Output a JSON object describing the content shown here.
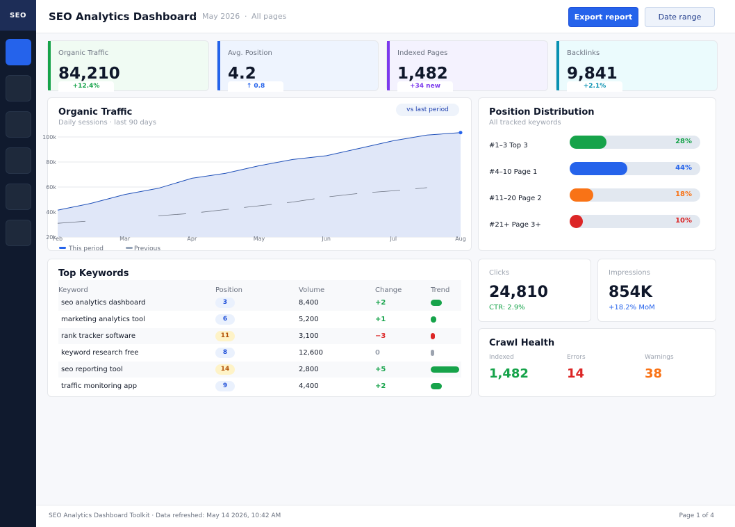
{
  "sidebar": {
    "logo": "SEO",
    "items": [
      {
        "icon": "dashboard-icon",
        "active": true
      },
      {
        "icon": "keywords-icon",
        "active": false
      },
      {
        "icon": "pages-icon",
        "active": false
      },
      {
        "icon": "backlinks-icon",
        "active": false
      },
      {
        "icon": "reports-icon",
        "active": false
      },
      {
        "icon": "settings-icon",
        "active": false
      }
    ]
  },
  "header": {
    "title": "SEO Analytics Dashboard",
    "period": "May 2026",
    "scope": "All pages",
    "export_label": "Export report",
    "date_range_label": "Date range"
  },
  "kpis": [
    {
      "label": "Organic Traffic",
      "value": "84,210",
      "delta": "+12.4%",
      "accent": "#16a34a",
      "bg": "#f0fbf3",
      "delta_color": "#16a34a"
    },
    {
      "label": "Avg. Position",
      "value": "4.2",
      "delta": "↑ 0.8",
      "accent": "#2563eb",
      "bg": "#eef4fe",
      "delta_color": "#2563eb"
    },
    {
      "label": "Indexed Pages",
      "value": "1,482",
      "delta": "+34 new",
      "accent": "#7c3aed",
      "bg": "#f4f2fe",
      "delta_color": "#7c3aed"
    },
    {
      "label": "Backlinks",
      "value": "9,841",
      "delta": "+2.1%",
      "accent": "#0891b2",
      "bg": "#ebfbfd",
      "delta_color": "#0891b2"
    }
  ],
  "traffic": {
    "title": "Organic Traffic",
    "subtitle": "Daily sessions · last 90 days",
    "pill": "vs last period",
    "legend_current": "This period",
    "legend_previous": "Previous",
    "colors": {
      "current": "#1e4fb8",
      "previous": "#6b7280",
      "fill": "#e0e7f8"
    }
  },
  "chart_data": {
    "type": "area",
    "x": [
      "Feb",
      "",
      "Mar",
      "",
      "Apr",
      "",
      "May",
      "",
      "Jun",
      "",
      "Jul",
      "",
      "Aug"
    ],
    "x_ticks": [
      "Feb",
      "Mar",
      "Apr",
      "May",
      "Jun",
      "Jul",
      "Aug"
    ],
    "y_ticks": [
      "100k",
      "80k",
      "60k",
      "40k",
      "20k"
    ],
    "ylim": [
      20000,
      100000
    ],
    "series": [
      {
        "name": "This period",
        "values": [
          41500,
          47000,
          54000,
          59000,
          67000,
          71000,
          77000,
          82000,
          85000,
          91000,
          97000,
          101500,
          103500
        ]
      },
      {
        "name": "Previous",
        "values": [
          31000,
          33000,
          null,
          37000,
          39000,
          42000,
          45000,
          48000,
          52000,
          55000,
          57000,
          59500,
          null
        ]
      }
    ],
    "grid": true,
    "legend": "bottom-left"
  },
  "distribution": {
    "title": "Position Distribution",
    "subtitle": "All tracked keywords",
    "rows": [
      {
        "label": "#1–3  Top 3",
        "pct": 28,
        "pct_label": "28%",
        "color": "#16a34a"
      },
      {
        "label": "#4–10  Page 1",
        "pct": 44,
        "pct_label": "44%",
        "color": "#2563eb"
      },
      {
        "label": "#11–20  Page 2",
        "pct": 18,
        "pct_label": "18%",
        "color": "#f97316"
      },
      {
        "label": "#21+  Page 3+",
        "pct": 10,
        "pct_label": "10%",
        "color": "#dc2626"
      }
    ]
  },
  "keywords": {
    "title": "Top Keywords",
    "columns": [
      "Keyword",
      "Position",
      "Volume",
      "Change",
      "Trend"
    ],
    "rows": [
      {
        "keyword": "seo analytics dashboard",
        "position": "3",
        "volume": "8,400",
        "change": "+2",
        "trend": 0.4,
        "tone": "good"
      },
      {
        "keyword": "marketing analytics tool",
        "position": "6",
        "volume": "5,200",
        "change": "+1",
        "trend": 0.2,
        "tone": "good"
      },
      {
        "keyword": "rank tracker software",
        "position": "11",
        "volume": "3,100",
        "change": "−3",
        "trend": 0.15,
        "tone": "bad"
      },
      {
        "keyword": "keyword research free",
        "position": "8",
        "volume": "12,600",
        "change": "0",
        "trend": 0.1,
        "tone": "neutral"
      },
      {
        "keyword": "seo reporting tool",
        "position": "14",
        "volume": "2,800",
        "change": "+5",
        "trend": 1.0,
        "tone": "good"
      },
      {
        "keyword": "traffic monitoring app",
        "position": "9",
        "volume": "4,400",
        "change": "+2",
        "trend": 0.4,
        "tone": "good"
      }
    ]
  },
  "clicks": {
    "label": "Clicks",
    "value": "24,810",
    "sub": "CTR: 2.9%",
    "color": "#16a34a"
  },
  "impressions": {
    "label": "Impressions",
    "value": "854K",
    "sub": "+18.2% MoM",
    "color": "#2563eb"
  },
  "crawl": {
    "title": "Crawl Health",
    "items": [
      {
        "label": "Indexed",
        "value": "1,482",
        "color": "#16a34a"
      },
      {
        "label": "Errors",
        "value": "14",
        "color": "#dc2626"
      },
      {
        "label": "Warnings",
        "value": "38",
        "color": "#f97316"
      }
    ]
  },
  "footer": {
    "left": "SEO Analytics Dashboard Toolkit · Data refreshed: May 14 2026, 10:42 AM",
    "right": "Page 1 of 4"
  }
}
